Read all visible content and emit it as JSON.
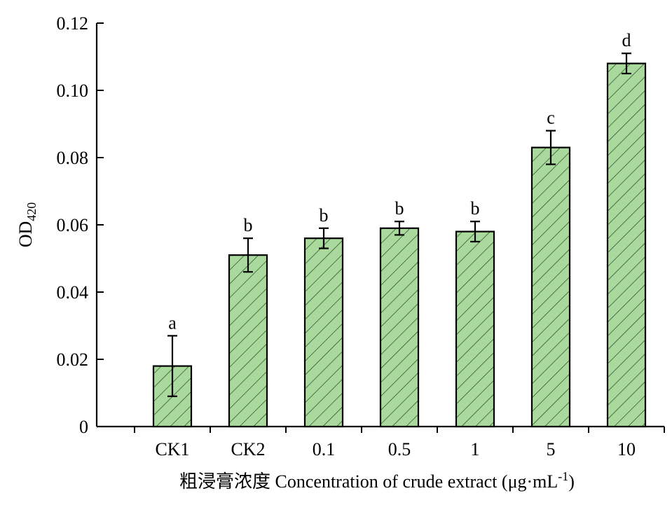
{
  "chart_data": {
    "type": "bar",
    "ylabel": {
      "main": "OD",
      "subscript": "420"
    },
    "xlabel": {
      "main": "粗浸膏浓度 Concentration of crude extract (μg·mL",
      "superscript": "-1",
      "close": ")"
    },
    "categories": [
      "CK1",
      "CK2",
      "0.1",
      "0.5",
      "1",
      "5",
      "10"
    ],
    "values": [
      0.018,
      0.051,
      0.056,
      0.059,
      0.058,
      0.083,
      0.108
    ],
    "errors": [
      0.009,
      0.005,
      0.003,
      0.002,
      0.003,
      0.005,
      0.003
    ],
    "significance": [
      "a",
      "b",
      "b",
      "b",
      "b",
      "c",
      "d"
    ],
    "ylim": [
      0,
      0.12
    ],
    "yticks": [
      {
        "value": 0,
        "label": "0"
      },
      {
        "value": 0.02,
        "label": "0.02"
      },
      {
        "value": 0.04,
        "label": "0.04"
      },
      {
        "value": 0.06,
        "label": "0.06"
      },
      {
        "value": 0.08,
        "label": "0.08"
      },
      {
        "value": 0.1,
        "label": "0.10"
      },
      {
        "value": 0.12,
        "label": "0.12"
      }
    ],
    "bar_fill": "#a9d99c",
    "bar_hatch": "#1f3d1a",
    "bar_edge": "#000000",
    "grid": false
  }
}
